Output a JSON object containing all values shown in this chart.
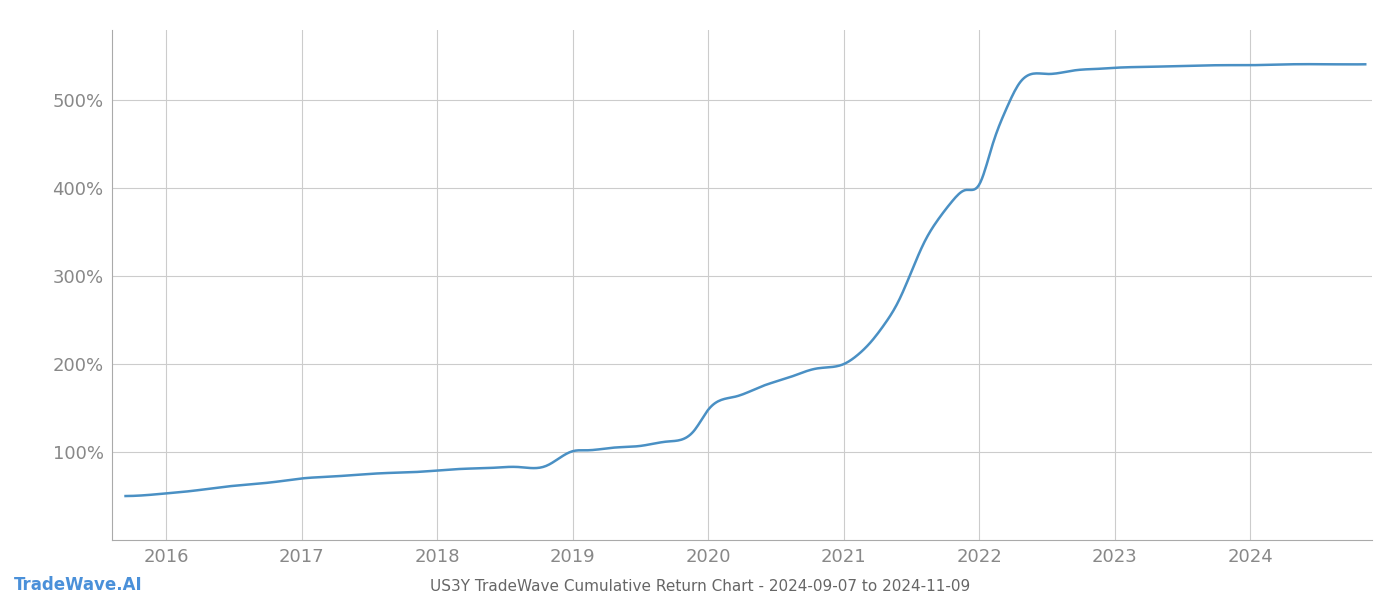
{
  "title": "US3Y TradeWave Cumulative Return Chart - 2024-09-07 to 2024-11-09",
  "watermark": "TradeWave.AI",
  "line_color": "#4a90c4",
  "background_color": "#ffffff",
  "grid_color": "#cccccc",
  "x_years": [
    2016,
    2017,
    2018,
    2019,
    2020,
    2021,
    2022,
    2023,
    2024
  ],
  "x_values": [
    2015.7,
    2015.85,
    2016.0,
    2016.2,
    2016.4,
    2016.6,
    2016.8,
    2017.0,
    2017.2,
    2017.4,
    2017.6,
    2017.8,
    2018.0,
    2018.2,
    2018.4,
    2018.6,
    2018.8,
    2019.0,
    2019.1,
    2019.3,
    2019.5,
    2019.7,
    2019.9,
    2020.0,
    2020.2,
    2020.4,
    2020.6,
    2020.8,
    2021.0,
    2021.1,
    2021.2,
    2021.3,
    2021.4,
    2021.5,
    2021.6,
    2021.7,
    2021.8,
    2021.9,
    2022.0,
    2022.1,
    2022.2,
    2022.3,
    2022.5,
    2022.7,
    2022.9,
    2023.0,
    2023.2,
    2023.5,
    2023.8,
    2024.0,
    2024.3,
    2024.6,
    2024.85
  ],
  "y_values": [
    50,
    51,
    53,
    56,
    60,
    63,
    66,
    70,
    72,
    74,
    76,
    77,
    79,
    81,
    82,
    83,
    84,
    101,
    102,
    105,
    107,
    112,
    125,
    148,
    163,
    175,
    185,
    195,
    200,
    210,
    225,
    245,
    270,
    305,
    340,
    365,
    385,
    398,
    404,
    450,
    490,
    520,
    530,
    534,
    536,
    537,
    538,
    539,
    540,
    540,
    541,
    541,
    541
  ],
  "ylim": [
    0,
    580
  ],
  "yticks": [
    100,
    200,
    300,
    400,
    500
  ],
  "tick_color": "#888888",
  "title_color": "#666666",
  "watermark_color": "#4a90d9",
  "title_fontsize": 11,
  "watermark_fontsize": 12,
  "tick_fontsize": 13
}
